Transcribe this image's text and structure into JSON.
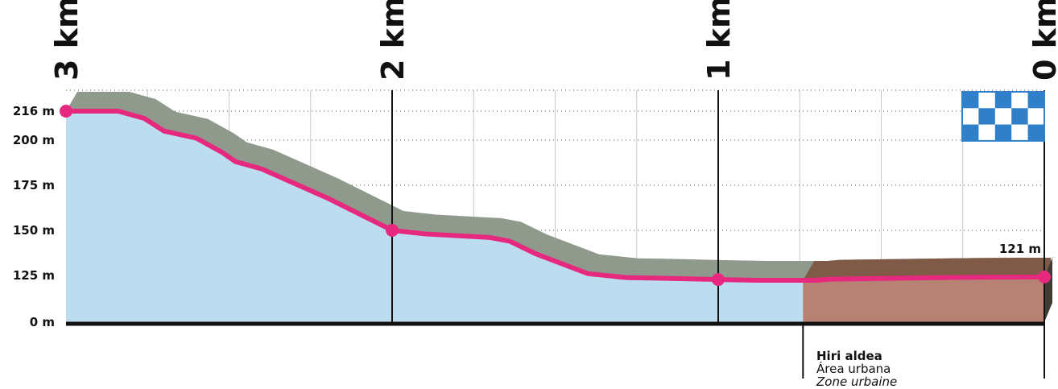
{
  "chart_data": {
    "type": "area",
    "title": "",
    "x_axis": {
      "ticks": [
        {
          "km": 3,
          "label": "3 km"
        },
        {
          "km": 2,
          "label": "2 km"
        },
        {
          "km": 1,
          "label": "1 km"
        },
        {
          "km": 0,
          "label": "0 km"
        }
      ],
      "range": [
        3,
        0
      ]
    },
    "y_axis": {
      "ticks": [
        {
          "v": 216,
          "label": "216 m"
        },
        {
          "v": 200,
          "label": "200 m"
        },
        {
          "v": 175,
          "label": "175 m"
        },
        {
          "v": 150,
          "label": "150 m"
        },
        {
          "v": 125,
          "label": "125 m"
        },
        {
          "v": 0,
          "label": "0 m"
        }
      ],
      "note": "broken scale: 0 m at baseline, linear above 125 m"
    },
    "profile": [
      {
        "km": 3.0,
        "elev": 216
      },
      {
        "km": 2.84,
        "elev": 216
      },
      {
        "km": 2.76,
        "elev": 212
      },
      {
        "km": 2.7,
        "elev": 205
      },
      {
        "km": 2.6,
        "elev": 201
      },
      {
        "km": 2.52,
        "elev": 193
      },
      {
        "km": 2.48,
        "elev": 188
      },
      {
        "km": 2.4,
        "elev": 184
      },
      {
        "km": 2.2,
        "elev": 168
      },
      {
        "km": 2.0,
        "elev": 150
      },
      {
        "km": 1.9,
        "elev": 148
      },
      {
        "km": 1.7,
        "elev": 146
      },
      {
        "km": 1.64,
        "elev": 144
      },
      {
        "km": 1.56,
        "elev": 137
      },
      {
        "km": 1.4,
        "elev": 126
      },
      {
        "km": 1.28,
        "elev": 119
      },
      {
        "km": 1.2,
        "elev": 118
      },
      {
        "km": 1.0,
        "elev": 114
      },
      {
        "km": 0.88,
        "elev": 112
      },
      {
        "km": 0.7,
        "elev": 112
      },
      {
        "km": 0.66,
        "elev": 115
      },
      {
        "km": 0.5,
        "elev": 117
      },
      {
        "km": 0.25,
        "elev": 120
      },
      {
        "km": 0.0,
        "elev": 121
      }
    ],
    "markers": [
      {
        "km": 3.0,
        "elev": 216
      },
      {
        "km": 2.0,
        "elev": 150
      },
      {
        "km": 1.0,
        "elev": 114
      },
      {
        "km": 0.0,
        "elev": 121
      }
    ],
    "value_labels": [
      {
        "km": 0.0,
        "elev": 121,
        "text": "121 m"
      }
    ],
    "zones": [
      {
        "name": "urban",
        "from_km": 0.74,
        "to_km": 0.0
      }
    ],
    "colors": {
      "profile_line": "#e6287f",
      "area_fill": "#bcdcef",
      "shadow": "#8f9a8d",
      "urban_fill": "#b68273",
      "urban_top": "#7f5a46",
      "finish_flag": "#2f7fc9",
      "grid": "#9a9a9a"
    },
    "finish_flag_icon": "checkered-flag-icon"
  },
  "legend": {
    "line1": "Hiri aldea",
    "line2": "Área urbana",
    "line3": "Zone urbaine"
  }
}
